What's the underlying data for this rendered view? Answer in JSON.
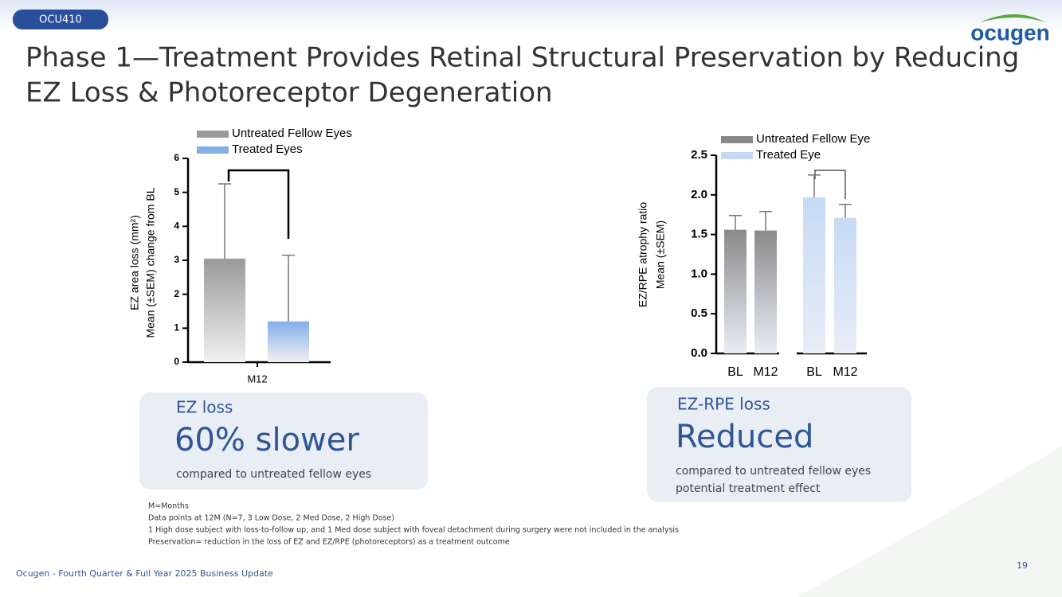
{
  "tag": "OCU410",
  "logo": "ocugen",
  "title": [
    "Phase 1—Treatment Provides Retinal Structural Preservation by Reducing",
    "EZ Loss & Photoreceptor Degeneration"
  ],
  "chart_data": [
    {
      "type": "bar",
      "y_label": [
        "EZ area loss (mm²)",
        "Mean (±SEM) change from BL"
      ],
      "categories": [
        "M12"
      ],
      "series": [
        {
          "name": "Untreated Fellow Eyes",
          "color": "#9a9a9a",
          "values": [
            3.05
          ],
          "errors": [
            2.2
          ]
        },
        {
          "name": "Treated Eyes",
          "color": "#82aeea",
          "values": [
            1.2
          ],
          "errors": [
            1.95
          ]
        }
      ],
      "ylim": [
        0,
        6
      ],
      "yticks": [
        0,
        1,
        2,
        3,
        4,
        5,
        6
      ]
    },
    {
      "type": "bar",
      "y_label": [
        "EZ/RPE atrophy ratio",
        "Mean (±SEM)"
      ],
      "categories": [
        "BL",
        "M12",
        "BL",
        "M12"
      ],
      "series": [
        {
          "name": "Untreated Fellow Eye",
          "color": "#8a8a8a",
          "values": [
            1.56,
            1.55,
            null,
            null
          ],
          "errors": [
            0.18,
            0.24,
            null,
            null
          ]
        },
        {
          "name": "Treated Eye",
          "color": "#c6daf5",
          "values": [
            null,
            null,
            1.97,
            1.71
          ],
          "errors": [
            null,
            null,
            0.28,
            0.17
          ]
        }
      ],
      "ylim": [
        0,
        2.5
      ],
      "yticks": [
        {
          "value": 0,
          "label": "0.0"
        },
        0.5,
        {
          "value": 1,
          "label": "1.0"
        },
        1.5,
        {
          "value": 2,
          "label": "2.0"
        },
        2.5
      ]
    }
  ],
  "callouts": [
    {
      "heading": "EZ loss",
      "headline": "60% slower",
      "notes": [
        "compared to untreated fellow eyes"
      ]
    },
    {
      "heading": "EZ-RPE loss",
      "headline": "Reduced",
      "notes": [
        "compared to untreated fellow eyes",
        "potential treatment effect"
      ]
    }
  ],
  "footnotes": [
    "M=Months",
    "Data points at  12M (N=7, 3 Low Dose, 2 Med Dose, 2 High Dose)",
    "1 High dose subject with loss-to-follow up, and 1 Med dose subject with foveal detachment during surgery were not included in the analysis",
    "Preservation= reduction in the loss of EZ and EZ/RPE (photoreceptors) as a treatment outcome"
  ],
  "footer": "Ocugen - Fourth Quarter & Full Year 2025 Business Update",
  "page_number": "19"
}
